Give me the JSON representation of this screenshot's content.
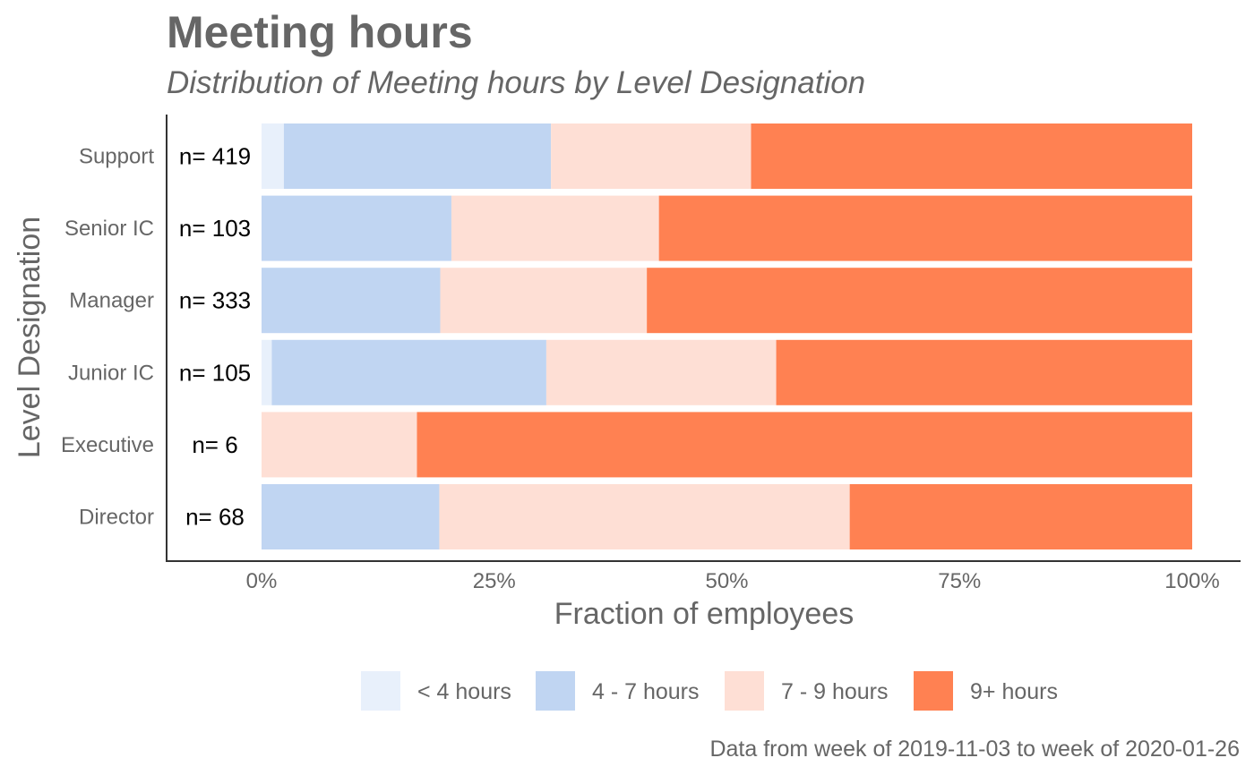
{
  "chart_data": {
    "type": "bar",
    "orientation": "horizontal",
    "stacked": "percent",
    "title": "Meeting hours",
    "subtitle": "Distribution of Meeting hours by Level Designation",
    "xlabel": "Fraction of employees",
    "ylabel": "Level Designation",
    "caption": "Data from week of 2019-11-03 to week of 2020-01-26",
    "xlim": [
      0,
      1
    ],
    "x_ticks": [
      0,
      0.25,
      0.5,
      0.75,
      1
    ],
    "x_tick_labels": [
      "0%",
      "25%",
      "50%",
      "75%",
      "100%"
    ],
    "categories": [
      "Support",
      "Senior IC",
      "Manager",
      "Junior IC",
      "Executive",
      "Director"
    ],
    "n_labels": [
      "n= 419",
      "n= 103",
      "n= 333",
      "n= 105",
      "n= 6",
      "n= 68"
    ],
    "series": [
      {
        "name": "< 4 hours",
        "color": "#E8F0FB",
        "values": [
          0.024,
          0.0,
          0.0,
          0.011,
          0.0,
          0.0
        ]
      },
      {
        "name": "4 - 7 hours",
        "color": "#C0D5F2",
        "values": [
          0.287,
          0.204,
          0.192,
          0.295,
          0.0,
          0.191
        ]
      },
      {
        "name": "7 - 9 hours",
        "color": "#FEDFD5",
        "values": [
          0.215,
          0.223,
          0.222,
          0.247,
          0.167,
          0.441
        ]
      },
      {
        "name": "9+ hours",
        "color": "#FF8152",
        "values": [
          0.474,
          0.573,
          0.586,
          0.447,
          0.833,
          0.368
        ]
      }
    ],
    "legend_position": "bottom",
    "grid": false
  }
}
